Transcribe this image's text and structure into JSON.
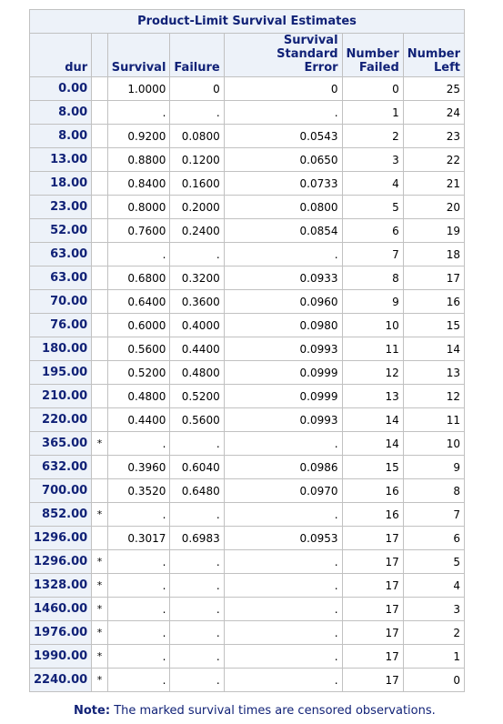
{
  "table": {
    "title": "Product-Limit Survival Estimates",
    "columns": {
      "dur": "dur",
      "survival": "Survival",
      "failure": "Failure",
      "stderr_line1": "Survival Standard",
      "stderr_line2": "Error",
      "nfailed_line1": "Number",
      "nfailed_line2": "Failed",
      "nleft_line1": "Number",
      "nleft_line2": "Left"
    },
    "rows": [
      {
        "dur": "0.00",
        "censor": "",
        "survival": "1.0000",
        "failure": "0",
        "stderr": "0",
        "failed": "0",
        "left": "25"
      },
      {
        "dur": "8.00",
        "censor": "",
        "survival": ".",
        "failure": ".",
        "stderr": ".",
        "failed": "1",
        "left": "24"
      },
      {
        "dur": "8.00",
        "censor": "",
        "survival": "0.9200",
        "failure": "0.0800",
        "stderr": "0.0543",
        "failed": "2",
        "left": "23"
      },
      {
        "dur": "13.00",
        "censor": "",
        "survival": "0.8800",
        "failure": "0.1200",
        "stderr": "0.0650",
        "failed": "3",
        "left": "22"
      },
      {
        "dur": "18.00",
        "censor": "",
        "survival": "0.8400",
        "failure": "0.1600",
        "stderr": "0.0733",
        "failed": "4",
        "left": "21"
      },
      {
        "dur": "23.00",
        "censor": "",
        "survival": "0.8000",
        "failure": "0.2000",
        "stderr": "0.0800",
        "failed": "5",
        "left": "20"
      },
      {
        "dur": "52.00",
        "censor": "",
        "survival": "0.7600",
        "failure": "0.2400",
        "stderr": "0.0854",
        "failed": "6",
        "left": "19"
      },
      {
        "dur": "63.00",
        "censor": "",
        "survival": ".",
        "failure": ".",
        "stderr": ".",
        "failed": "7",
        "left": "18"
      },
      {
        "dur": "63.00",
        "censor": "",
        "survival": "0.6800",
        "failure": "0.3200",
        "stderr": "0.0933",
        "failed": "8",
        "left": "17"
      },
      {
        "dur": "70.00",
        "censor": "",
        "survival": "0.6400",
        "failure": "0.3600",
        "stderr": "0.0960",
        "failed": "9",
        "left": "16"
      },
      {
        "dur": "76.00",
        "censor": "",
        "survival": "0.6000",
        "failure": "0.4000",
        "stderr": "0.0980",
        "failed": "10",
        "left": "15"
      },
      {
        "dur": "180.00",
        "censor": "",
        "survival": "0.5600",
        "failure": "0.4400",
        "stderr": "0.0993",
        "failed": "11",
        "left": "14"
      },
      {
        "dur": "195.00",
        "censor": "",
        "survival": "0.5200",
        "failure": "0.4800",
        "stderr": "0.0999",
        "failed": "12",
        "left": "13"
      },
      {
        "dur": "210.00",
        "censor": "",
        "survival": "0.4800",
        "failure": "0.5200",
        "stderr": "0.0999",
        "failed": "13",
        "left": "12"
      },
      {
        "dur": "220.00",
        "censor": "",
        "survival": "0.4400",
        "failure": "0.5600",
        "stderr": "0.0993",
        "failed": "14",
        "left": "11"
      },
      {
        "dur": "365.00",
        "censor": "*",
        "survival": ".",
        "failure": ".",
        "stderr": ".",
        "failed": "14",
        "left": "10"
      },
      {
        "dur": "632.00",
        "censor": "",
        "survival": "0.3960",
        "failure": "0.6040",
        "stderr": "0.0986",
        "failed": "15",
        "left": "9"
      },
      {
        "dur": "700.00",
        "censor": "",
        "survival": "0.3520",
        "failure": "0.6480",
        "stderr": "0.0970",
        "failed": "16",
        "left": "8"
      },
      {
        "dur": "852.00",
        "censor": "*",
        "survival": ".",
        "failure": ".",
        "stderr": ".",
        "failed": "16",
        "left": "7"
      },
      {
        "dur": "1296.00",
        "censor": "",
        "survival": "0.3017",
        "failure": "0.6983",
        "stderr": "0.0953",
        "failed": "17",
        "left": "6"
      },
      {
        "dur": "1296.00",
        "censor": "*",
        "survival": ".",
        "failure": ".",
        "stderr": ".",
        "failed": "17",
        "left": "5"
      },
      {
        "dur": "1328.00",
        "censor": "*",
        "survival": ".",
        "failure": ".",
        "stderr": ".",
        "failed": "17",
        "left": "4"
      },
      {
        "dur": "1460.00",
        "censor": "*",
        "survival": ".",
        "failure": ".",
        "stderr": ".",
        "failed": "17",
        "left": "3"
      },
      {
        "dur": "1976.00",
        "censor": "*",
        "survival": ".",
        "failure": ".",
        "stderr": ".",
        "failed": "17",
        "left": "2"
      },
      {
        "dur": "1990.00",
        "censor": "*",
        "survival": ".",
        "failure": ".",
        "stderr": ".",
        "failed": "17",
        "left": "1"
      },
      {
        "dur": "2240.00",
        "censor": "*",
        "survival": ".",
        "failure": ".",
        "stderr": ".",
        "failed": "17",
        "left": "0"
      }
    ]
  },
  "note": {
    "label": "Note:",
    "text": "The marked survival times are censored observations."
  }
}
